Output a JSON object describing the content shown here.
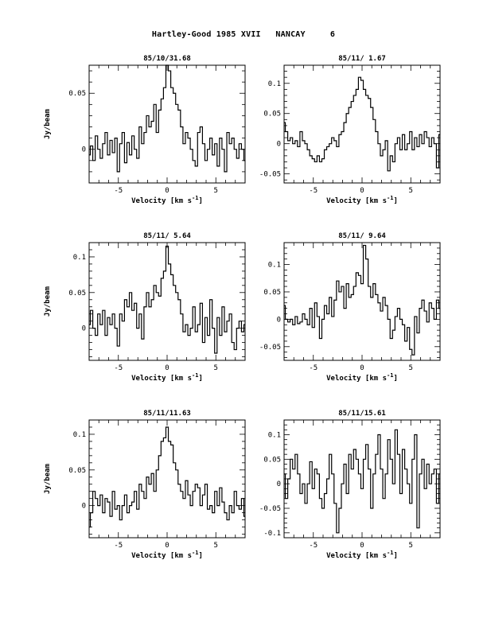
{
  "page": {
    "title": "Hartley-Good 1985 XVII   NANCAY     6"
  },
  "chart_data": [
    {
      "type": "line",
      "step": true,
      "title": "85/10/31.68",
      "xlabel": "Velocity [km s-1]",
      "ylabel": "Jy/beam",
      "xlim": [
        -8,
        8
      ],
      "ylim": [
        -0.03,
        0.075
      ],
      "xticks": [
        -5,
        0,
        5
      ],
      "yticks": [
        0,
        0.05
      ],
      "x": [
        -8.0,
        -7.75,
        -7.5,
        -7.25,
        -7.0,
        -6.75,
        -6.5,
        -6.25,
        -6.0,
        -5.75,
        -5.5,
        -5.25,
        -5.0,
        -4.75,
        -4.5,
        -4.25,
        -4.0,
        -3.75,
        -3.5,
        -3.25,
        -3.0,
        -2.75,
        -2.5,
        -2.25,
        -2.0,
        -1.75,
        -1.5,
        -1.25,
        -1.0,
        -0.75,
        -0.5,
        -0.25,
        0.0,
        0.25,
        0.5,
        0.75,
        1.0,
        1.25,
        1.5,
        1.75,
        2.0,
        2.25,
        2.5,
        2.75,
        3.0,
        3.25,
        3.5,
        3.75,
        4.0,
        4.25,
        4.5,
        4.75,
        5.0,
        5.25,
        5.5,
        5.75,
        6.0,
        6.25,
        6.5,
        6.75,
        7.0,
        7.25,
        7.5,
        7.75,
        8.0
      ],
      "y": [
        -0.005,
        0.003,
        -0.01,
        0.012,
        0.0,
        -0.008,
        0.005,
        0.015,
        -0.005,
        0.008,
        -0.003,
        0.01,
        -0.02,
        0.005,
        0.015,
        -0.012,
        0.006,
        -0.005,
        0.012,
        0.0,
        -0.008,
        0.02,
        0.005,
        0.015,
        0.03,
        0.02,
        0.025,
        0.04,
        0.015,
        0.035,
        0.045,
        0.055,
        0.075,
        0.07,
        0.055,
        0.05,
        0.04,
        0.035,
        0.02,
        0.005,
        0.015,
        0.01,
        0.0,
        -0.01,
        -0.015,
        0.015,
        0.02,
        0.005,
        -0.01,
        0.0,
        0.01,
        -0.005,
        0.005,
        -0.015,
        0.01,
        0.0,
        -0.02,
        0.015,
        0.005,
        0.01,
        0.0,
        -0.008,
        0.005,
        0.0,
        -0.01
      ]
    },
    {
      "type": "line",
      "step": true,
      "title": "85/11/ 1.67",
      "xlabel": "Velocity [km s-1]",
      "ylabel": "",
      "xlim": [
        -8,
        8
      ],
      "ylim": [
        -0.065,
        0.13
      ],
      "xticks": [
        -5,
        0,
        5
      ],
      "yticks": [
        -0.05,
        0,
        0.05,
        0.1
      ],
      "x": [
        -8.0,
        -7.75,
        -7.5,
        -7.25,
        -7.0,
        -6.75,
        -6.5,
        -6.25,
        -6.0,
        -5.75,
        -5.5,
        -5.25,
        -5.0,
        -4.75,
        -4.5,
        -4.25,
        -4.0,
        -3.75,
        -3.5,
        -3.25,
        -3.0,
        -2.75,
        -2.5,
        -2.25,
        -2.0,
        -1.75,
        -1.5,
        -1.25,
        -1.0,
        -0.75,
        -0.5,
        -0.25,
        0.0,
        0.25,
        0.5,
        0.75,
        1.0,
        1.25,
        1.5,
        1.75,
        2.0,
        2.25,
        2.5,
        2.75,
        3.0,
        3.25,
        3.5,
        3.75,
        4.0,
        4.25,
        4.5,
        4.75,
        5.0,
        5.25,
        5.5,
        5.75,
        6.0,
        6.25,
        6.5,
        6.75,
        7.0,
        7.25,
        7.5,
        7.75,
        8.0
      ],
      "y": [
        0.035,
        0.02,
        0.005,
        0.01,
        0.0,
        0.005,
        -0.005,
        0.02,
        0.005,
        0.0,
        -0.01,
        -0.02,
        -0.025,
        -0.03,
        -0.02,
        -0.03,
        -0.025,
        -0.01,
        -0.005,
        0.0,
        0.01,
        0.005,
        -0.005,
        0.015,
        0.02,
        0.035,
        0.05,
        0.06,
        0.07,
        0.08,
        0.09,
        0.11,
        0.105,
        0.09,
        0.08,
        0.075,
        0.06,
        0.04,
        0.02,
        0.0,
        -0.02,
        -0.01,
        0.005,
        -0.045,
        -0.02,
        -0.03,
        0.0,
        0.01,
        -0.01,
        0.015,
        -0.01,
        0.0,
        0.02,
        -0.01,
        0.01,
        -0.005,
        0.015,
        0.0,
        0.02,
        0.01,
        -0.005,
        0.01,
        0.0,
        -0.04,
        0.015
      ]
    },
    {
      "type": "line",
      "step": true,
      "title": "85/11/ 5.64",
      "xlabel": "Velocity [km s-1]",
      "ylabel": "Jy/beam",
      "xlim": [
        -8,
        8
      ],
      "ylim": [
        -0.045,
        0.12
      ],
      "xticks": [
        -5,
        0,
        5
      ],
      "yticks": [
        0,
        0.05,
        0.1
      ],
      "x": [
        -8.0,
        -7.75,
        -7.5,
        -7.25,
        -7.0,
        -6.75,
        -6.5,
        -6.25,
        -6.0,
        -5.75,
        -5.5,
        -5.25,
        -5.0,
        -4.75,
        -4.5,
        -4.25,
        -4.0,
        -3.75,
        -3.5,
        -3.25,
        -3.0,
        -2.75,
        -2.5,
        -2.25,
        -2.0,
        -1.75,
        -1.5,
        -1.25,
        -1.0,
        -0.75,
        -0.5,
        -0.25,
        0.0,
        0.25,
        0.5,
        0.75,
        1.0,
        1.25,
        1.5,
        1.75,
        2.0,
        2.25,
        2.5,
        2.75,
        3.0,
        3.25,
        3.5,
        3.75,
        4.0,
        4.25,
        4.5,
        4.75,
        5.0,
        5.25,
        5.5,
        5.75,
        6.0,
        6.25,
        6.5,
        6.75,
        7.0,
        7.25,
        7.5,
        7.75,
        8.0
      ],
      "y": [
        0.005,
        0.025,
        0.0,
        -0.01,
        0.02,
        0.005,
        0.025,
        -0.01,
        0.015,
        0.005,
        0.02,
        0.0,
        -0.025,
        0.02,
        0.01,
        0.04,
        0.03,
        0.05,
        0.025,
        0.035,
        0.0,
        0.02,
        -0.015,
        0.03,
        0.05,
        0.03,
        0.04,
        0.06,
        0.05,
        0.045,
        0.07,
        0.08,
        0.115,
        0.09,
        0.075,
        0.06,
        0.05,
        0.04,
        0.02,
        -0.005,
        0.005,
        -0.01,
        0.0,
        0.03,
        -0.005,
        0.005,
        0.035,
        -0.02,
        0.015,
        -0.01,
        0.04,
        0.0,
        -0.035,
        0.015,
        -0.01,
        0.03,
        -0.005,
        0.01,
        0.02,
        -0.02,
        -0.03,
        0.0,
        0.01,
        -0.005,
        0.005
      ]
    },
    {
      "type": "line",
      "step": true,
      "title": "85/11/ 9.64",
      "xlabel": "Velocity [km s-1]",
      "ylabel": "",
      "xlim": [
        -8,
        8
      ],
      "ylim": [
        -0.075,
        0.14
      ],
      "xticks": [
        -5,
        0,
        5
      ],
      "yticks": [
        -0.05,
        0,
        0.05,
        0.1
      ],
      "x": [
        -8.0,
        -7.75,
        -7.5,
        -7.25,
        -7.0,
        -6.75,
        -6.5,
        -6.25,
        -6.0,
        -5.75,
        -5.5,
        -5.25,
        -5.0,
        -4.75,
        -4.5,
        -4.25,
        -4.0,
        -3.75,
        -3.5,
        -3.25,
        -3.0,
        -2.75,
        -2.5,
        -2.25,
        -2.0,
        -1.75,
        -1.5,
        -1.25,
        -1.0,
        -0.75,
        -0.5,
        -0.25,
        0.0,
        0.25,
        0.5,
        0.75,
        1.0,
        1.25,
        1.5,
        1.75,
        2.0,
        2.25,
        2.5,
        2.75,
        3.0,
        3.25,
        3.5,
        3.75,
        4.0,
        4.25,
        4.5,
        4.75,
        5.0,
        5.25,
        5.5,
        5.75,
        6.0,
        6.25,
        6.5,
        6.75,
        7.0,
        7.25,
        7.5,
        7.75,
        8.0
      ],
      "y": [
        0.025,
        0.0,
        -0.005,
        0.0,
        -0.01,
        0.005,
        -0.008,
        -0.005,
        0.01,
        0.0,
        -0.01,
        0.02,
        -0.015,
        0.03,
        0.005,
        -0.035,
        0.0,
        0.025,
        0.01,
        0.04,
        0.005,
        0.035,
        0.07,
        0.05,
        0.06,
        0.02,
        0.065,
        0.04,
        0.045,
        0.06,
        0.085,
        0.08,
        0.065,
        0.135,
        0.11,
        0.06,
        0.04,
        0.065,
        0.045,
        0.03,
        0.015,
        0.04,
        0.025,
        0.0,
        -0.035,
        -0.02,
        0.005,
        0.02,
        0.0,
        -0.01,
        -0.04,
        -0.015,
        -0.055,
        -0.065,
        0.005,
        -0.025,
        0.02,
        0.035,
        0.015,
        -0.005,
        0.03,
        0.02,
        0.0,
        0.035,
        0.02
      ]
    },
    {
      "type": "line",
      "step": true,
      "title": "85/11/11.63",
      "xlabel": "Velocity [km s-1]",
      "ylabel": "Jy/beam",
      "xlim": [
        -8,
        8
      ],
      "ylim": [
        -0.045,
        0.12
      ],
      "xticks": [
        -5,
        0,
        5
      ],
      "yticks": [
        0,
        0.05,
        0.1
      ],
      "x": [
        -8.0,
        -7.75,
        -7.5,
        -7.25,
        -7.0,
        -6.75,
        -6.5,
        -6.25,
        -6.0,
        -5.75,
        -5.5,
        -5.25,
        -5.0,
        -4.75,
        -4.5,
        -4.25,
        -4.0,
        -3.75,
        -3.5,
        -3.25,
        -3.0,
        -2.75,
        -2.5,
        -2.25,
        -2.0,
        -1.75,
        -1.5,
        -1.25,
        -1.0,
        -0.75,
        -0.5,
        -0.25,
        0.0,
        0.25,
        0.5,
        0.75,
        1.0,
        1.25,
        1.5,
        1.75,
        2.0,
        2.25,
        2.5,
        2.75,
        3.0,
        3.25,
        3.5,
        3.75,
        4.0,
        4.25,
        4.5,
        4.75,
        5.0,
        5.25,
        5.5,
        5.75,
        6.0,
        6.25,
        6.5,
        6.75,
        7.0,
        7.25,
        7.5,
        7.75,
        8.0
      ],
      "y": [
        -0.03,
        -0.01,
        0.02,
        0.01,
        0.0,
        0.015,
        -0.01,
        0.01,
        0.005,
        -0.015,
        0.02,
        -0.005,
        0.0,
        -0.02,
        0.0,
        0.015,
        -0.01,
        0.0,
        0.005,
        0.02,
        -0.005,
        0.03,
        0.02,
        0.01,
        0.04,
        0.03,
        0.045,
        0.02,
        0.05,
        0.07,
        0.09,
        0.095,
        0.11,
        0.09,
        0.085,
        0.06,
        0.05,
        0.03,
        0.02,
        0.01,
        0.035,
        0.015,
        0.0,
        0.02,
        0.03,
        0.025,
        0.0,
        0.015,
        0.03,
        -0.005,
        0.0,
        -0.01,
        0.02,
        0.0,
        0.025,
        0.005,
        -0.01,
        -0.02,
        0.0,
        -0.01,
        0.02,
        0.0,
        -0.005,
        0.01,
        -0.015
      ]
    },
    {
      "type": "line",
      "step": true,
      "title": "85/11/15.61",
      "xlabel": "Velocity [km s-1]",
      "ylabel": "",
      "xlim": [
        -8,
        8
      ],
      "ylim": [
        -0.11,
        0.13
      ],
      "xticks": [
        -5,
        0,
        5
      ],
      "yticks": [
        -0.1,
        -0.05,
        0,
        0.05,
        0.1
      ],
      "x": [
        -8.0,
        -7.75,
        -7.5,
        -7.25,
        -7.0,
        -6.75,
        -6.5,
        -6.25,
        -6.0,
        -5.75,
        -5.5,
        -5.25,
        -5.0,
        -4.75,
        -4.5,
        -4.25,
        -4.0,
        -3.75,
        -3.5,
        -3.25,
        -3.0,
        -2.75,
        -2.5,
        -2.25,
        -2.0,
        -1.75,
        -1.5,
        -1.25,
        -1.0,
        -0.75,
        -0.5,
        -0.25,
        0.0,
        0.25,
        0.5,
        0.75,
        1.0,
        1.25,
        1.5,
        1.75,
        2.0,
        2.25,
        2.5,
        2.75,
        3.0,
        3.25,
        3.5,
        3.75,
        4.0,
        4.25,
        4.5,
        4.75,
        5.0,
        5.25,
        5.5,
        5.75,
        6.0,
        6.25,
        6.5,
        6.75,
        7.0,
        7.25,
        7.5,
        7.75,
        8.0
      ],
      "y": [
        0.02,
        -0.03,
        0.01,
        0.05,
        0.03,
        0.06,
        0.02,
        -0.02,
        0.0,
        -0.04,
        0.0,
        0.045,
        -0.01,
        0.03,
        0.02,
        -0.03,
        -0.05,
        -0.02,
        0.01,
        0.06,
        0.02,
        -0.04,
        -0.1,
        -0.05,
        0.0,
        0.04,
        -0.02,
        0.06,
        0.03,
        0.07,
        0.05,
        0.02,
        -0.01,
        0.05,
        0.08,
        0.03,
        -0.05,
        0.02,
        0.06,
        0.1,
        0.03,
        -0.03,
        0.02,
        0.09,
        0.05,
        0.0,
        0.11,
        0.06,
        -0.02,
        0.07,
        0.03,
        0.0,
        -0.04,
        0.05,
        0.1,
        -0.09,
        0.02,
        0.05,
        -0.01,
        0.04,
        0.0,
        0.02,
        0.03,
        -0.04,
        0.02
      ]
    }
  ]
}
